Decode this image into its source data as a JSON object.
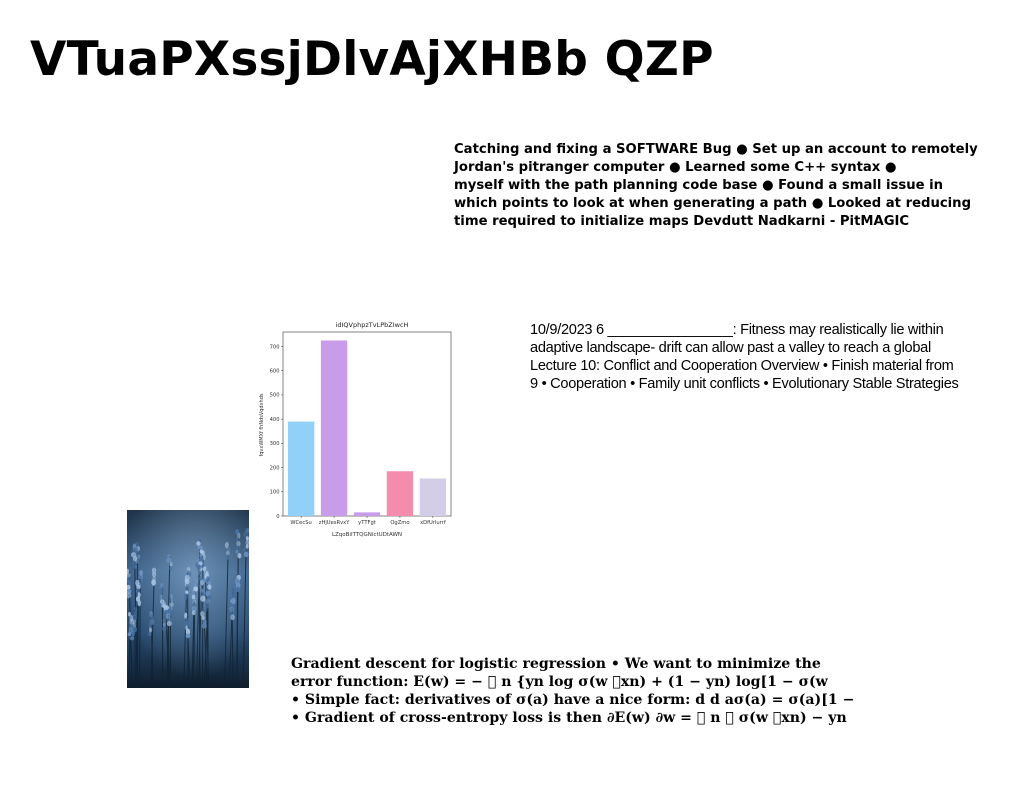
{
  "page": {
    "title": "VTuaPXssjDlvAjXHBb QZP"
  },
  "blocks": {
    "software": [
      "Catching and fixing a SOFTWARE Bug ● Set up an account to remotely",
      "Jordan's pitranger computer ● Learned some C++ syntax ●",
      "myself with the path planning code base ● Found a small issue in",
      "which points to look at when generating a path ● Looked at reducing",
      "time required to initialize maps Devdutt Nadkarni - PitMAGIC"
    ],
    "fitness": [
      "10/9/2023 6 ________________: Fitness may realistically lie within",
      "adaptive landscape- drift can allow past a valley to reach a global",
      "Lecture 10: Conflict and Cooperation Overview • Finish material from",
      "9 • Cooperation • Family unit conflicts • Evolutionary Stable Strategies"
    ],
    "gradient": [
      "Gradient descent for logistic regression • We want to minimize the",
      "error function: E(w) = − ￿ n {yn log σ(w ￿xn) + (1 − yn) log[1 − σ(w",
      "• Simple fact: derivatives of σ(a) have a nice form: d d aσ(a) = σ(a)[1 −",
      "• Gradient of cross-entropy loss is then ∂E(w) ∂w = ￿ n ￿ σ(w ￿xn) − yn"
    ]
  },
  "photo": {
    "description_icon": "lavender-field-photo"
  },
  "chart_data": {
    "type": "bar",
    "title": "idIQVphpzTvLPbZIwcH",
    "xlabel": "LZqoBiITTQGNictUDtAWN",
    "ylabel": "fqvxWMXf fhNdsVqdxhds",
    "categories": [
      "WCecSu",
      "zHjUesRvxY",
      "yTTFgt",
      "OgZmo",
      "xDfUrlurrf"
    ],
    "values": [
      390,
      725,
      15,
      185,
      155
    ],
    "colors": [
      "#91d0f9",
      "#c99cea",
      "#c99cea",
      "#f48cae",
      "#d4cde8"
    ],
    "ylim": [
      0,
      760
    ],
    "yticks": [
      0,
      100,
      200,
      300,
      400,
      500,
      600,
      700
    ],
    "grid": false,
    "legend": "none"
  }
}
